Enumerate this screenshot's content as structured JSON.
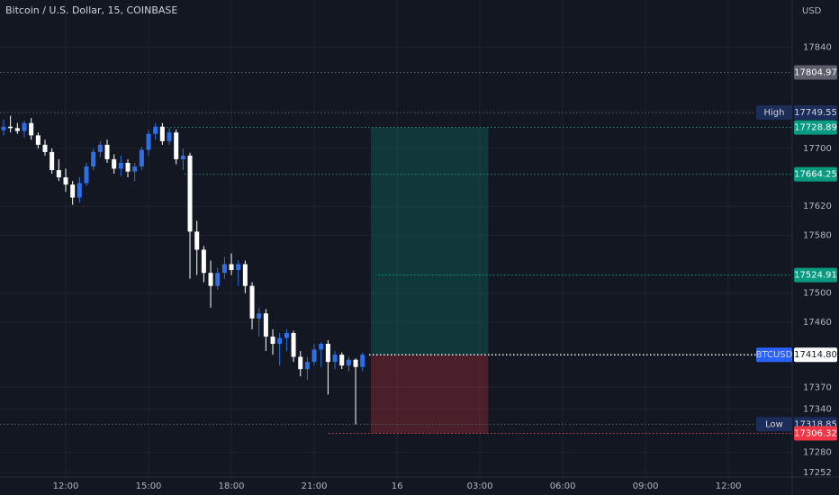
{
  "chart_data": {
    "type": "candlestick",
    "title": "Bitcoin / U.S. Dollar, 15, COINBASE",
    "axis_unit": "USD",
    "x": [
      9.75,
      10,
      10.25,
      10.5,
      10.75,
      11,
      11.25,
      11.5,
      11.75,
      12,
      12.25,
      12.5,
      12.75,
      13,
      13.25,
      13.5,
      13.75,
      14,
      14.25,
      14.5,
      14.75,
      15,
      15.25,
      15.5,
      15.75,
      16,
      16.25,
      16.5,
      16.75,
      17,
      17.25,
      17.5,
      17.75,
      18,
      18.25,
      18.5,
      18.75,
      19,
      19.25,
      19.5,
      19.75,
      20,
      20.25,
      20.5,
      20.75,
      21,
      21.25,
      21.5,
      21.75,
      22,
      22.25,
      22.5,
      22.75
    ],
    "open": [
      17725,
      17730,
      17728,
      17724,
      17735,
      17718,
      17705,
      17695,
      17670,
      17660,
      17650,
      17632,
      17652,
      17675,
      17695,
      17705,
      17685,
      17672,
      17680,
      17668,
      17675,
      17698,
      17720,
      17730,
      17710,
      17722,
      17685,
      17690,
      17585,
      17560,
      17528,
      17510,
      17528,
      17540,
      17532,
      17540,
      17510,
      17465,
      17472,
      17440,
      17430,
      17438,
      17445,
      17412,
      17395,
      17405,
      17422,
      17430,
      17405,
      17415,
      17400,
      17408,
      17398
    ],
    "high": [
      17740,
      17745,
      17735,
      17738,
      17742,
      17722,
      17712,
      17700,
      17685,
      17672,
      17655,
      17660,
      17680,
      17700,
      17710,
      17712,
      17692,
      17690,
      17685,
      17680,
      17702,
      17725,
      17735,
      17735,
      17728,
      17726,
      17700,
      17694,
      17600,
      17565,
      17545,
      17535,
      17550,
      17555,
      17545,
      17545,
      17515,
      17480,
      17478,
      17450,
      17445,
      17450,
      17448,
      17420,
      17412,
      17430,
      17432,
      17435,
      17420,
      17418,
      17412,
      17410,
      17418
    ],
    "low": [
      17718,
      17722,
      17720,
      17715,
      17712,
      17700,
      17690,
      17665,
      17655,
      17640,
      17622,
      17625,
      17648,
      17670,
      17688,
      17680,
      17665,
      17662,
      17660,
      17655,
      17670,
      17690,
      17712,
      17705,
      17705,
      17678,
      17670,
      17520,
      17525,
      17515,
      17480,
      17505,
      17520,
      17525,
      17510,
      17500,
      17450,
      17440,
      17420,
      17415,
      17400,
      17420,
      17405,
      17385,
      17380,
      17400,
      17398,
      17360,
      17395,
      17395,
      17392,
      17318.85,
      17392
    ],
    "close": [
      17730,
      17728,
      17724,
      17735,
      17718,
      17705,
      17695,
      17670,
      17660,
      17650,
      17632,
      17652,
      17675,
      17695,
      17705,
      17685,
      17672,
      17680,
      17668,
      17675,
      17698,
      17720,
      17730,
      17710,
      17722,
      17685,
      17690,
      17585,
      17560,
      17528,
      17510,
      17528,
      17540,
      17532,
      17540,
      17510,
      17465,
      17472,
      17440,
      17430,
      17438,
      17445,
      17412,
      17395,
      17405,
      17422,
      17430,
      17405,
      17415,
      17400,
      17408,
      17398,
      17414.8
    ],
    "up_color": "#2f6fe6",
    "down_color": "#ffffff",
    "xlim": [
      9.62,
      38.31
    ],
    "ylim": [
      17246,
      17905
    ],
    "xticks": [
      {
        "value": 12,
        "label": "12:00"
      },
      {
        "value": 15,
        "label": "15:00"
      },
      {
        "value": 18,
        "label": "18:00"
      },
      {
        "value": 21,
        "label": "21:00"
      },
      {
        "value": 24,
        "label": "16"
      },
      {
        "value": 27,
        "label": "03:00"
      },
      {
        "value": 30,
        "label": "06:00"
      },
      {
        "value": 33,
        "label": "09:00"
      },
      {
        "value": 36,
        "label": "12:00"
      }
    ],
    "yticks": [
      17840,
      17700,
      17620,
      17580,
      17500,
      17460,
      17370,
      17340,
      17280,
      17252
    ],
    "grid": true,
    "levels": [
      {
        "value": 17804.97,
        "color": "#5d606b"
      },
      {
        "value": 17749.55,
        "tag": "High",
        "color": "#1c2d5a"
      },
      {
        "value": 17664.25,
        "color": "#089981"
      },
      {
        "value": 17524.91,
        "color": "#089981"
      },
      {
        "value": 17318.85,
        "tag": "Low",
        "color": "#1c2d5a"
      }
    ],
    "position": {
      "x": [
        23.05,
        27.3
      ],
      "target": 17728.89,
      "target_color": "#089981",
      "entry": 17414.8,
      "entry_label": "17414.80",
      "entry_tag": "BTCUSD",
      "stop": 17306.32,
      "stop_color": "#f23645"
    }
  }
}
